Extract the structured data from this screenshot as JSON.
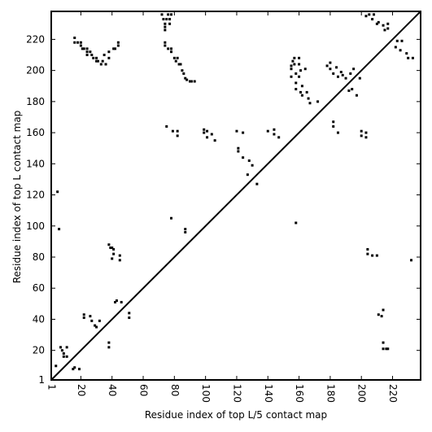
{
  "chart_data": {
    "type": "scatter",
    "xlabel": "Residue index of top L/5 contact map",
    "ylabel": "Residue index of top L contact map",
    "xlim": [
      1,
      238
    ],
    "ylim": [
      1,
      238
    ],
    "x_ticks": [
      1,
      20,
      40,
      60,
      80,
      100,
      120,
      140,
      160,
      180,
      200,
      220
    ],
    "y_ticks": [
      1,
      20,
      40,
      60,
      80,
      100,
      120,
      140,
      160,
      180,
      200,
      220
    ],
    "diagonal": true,
    "colors": {
      "points": "#000000",
      "axes": "#000000",
      "background": "#ffffff"
    },
    "series": [
      {
        "region": "above-diagonal",
        "points": [
          [
            16,
            221
          ],
          [
            16,
            218
          ],
          [
            18,
            218
          ],
          [
            20,
            216
          ],
          [
            20,
            218
          ],
          [
            21,
            214
          ],
          [
            22,
            214
          ],
          [
            24,
            214
          ],
          [
            24,
            212
          ],
          [
            24,
            210
          ],
          [
            26,
            212
          ],
          [
            27,
            210
          ],
          [
            28,
            208
          ],
          [
            30,
            208
          ],
          [
            30,
            206
          ],
          [
            31,
            206
          ],
          [
            33,
            204
          ],
          [
            34,
            206
          ],
          [
            35,
            210
          ],
          [
            36,
            204
          ],
          [
            38,
            212
          ],
          [
            38,
            208
          ],
          [
            41,
            214
          ],
          [
            42,
            214
          ],
          [
            44,
            216
          ],
          [
            44,
            218
          ],
          [
            72,
            236
          ],
          [
            73,
            233
          ],
          [
            74,
            230
          ],
          [
            74,
            228
          ],
          [
            74,
            226
          ],
          [
            75,
            233
          ],
          [
            76,
            236
          ],
          [
            77,
            230
          ],
          [
            77,
            233
          ],
          [
            78,
            236
          ],
          [
            74,
            216
          ],
          [
            74,
            218
          ],
          [
            76,
            214
          ],
          [
            78,
            214
          ],
          [
            78,
            212
          ],
          [
            80,
            208
          ],
          [
            81,
            206
          ],
          [
            82,
            208
          ],
          [
            83,
            204
          ],
          [
            84,
            204
          ],
          [
            85,
            200
          ],
          [
            86,
            198
          ],
          [
            87,
            195
          ],
          [
            88,
            194
          ],
          [
            90,
            193
          ],
          [
            91,
            193
          ],
          [
            93,
            193
          ],
          [
            75,
            164
          ],
          [
            79,
            161
          ],
          [
            82,
            161
          ],
          [
            82,
            158
          ],
          [
            99,
            160
          ],
          [
            99,
            162
          ],
          [
            101,
            157
          ],
          [
            101,
            161
          ],
          [
            104,
            159
          ],
          [
            106,
            155
          ],
          [
            120,
            161
          ],
          [
            121,
            150
          ],
          [
            121,
            148
          ],
          [
            124,
            160
          ],
          [
            124,
            144
          ],
          [
            127,
            133
          ],
          [
            128,
            142
          ],
          [
            130,
            139
          ],
          [
            133,
            127
          ],
          [
            140,
            161
          ],
          [
            144,
            162
          ],
          [
            144,
            159
          ],
          [
            147,
            157
          ],
          [
            155,
            203
          ],
          [
            155,
            201
          ],
          [
            155,
            196
          ],
          [
            156,
            206
          ],
          [
            157,
            208
          ],
          [
            157,
            204
          ],
          [
            158,
            198
          ],
          [
            158,
            192
          ],
          [
            158,
            188
          ],
          [
            160,
            208
          ],
          [
            160,
            204
          ],
          [
            160,
            196
          ],
          [
            161,
            200
          ],
          [
            161,
            186
          ],
          [
            162,
            190
          ],
          [
            162,
            184
          ],
          [
            164,
            201
          ],
          [
            165,
            186
          ],
          [
            166,
            182
          ],
          [
            167,
            179
          ],
          [
            172,
            180
          ],
          [
            178,
            203
          ],
          [
            180,
            201
          ],
          [
            180,
            205
          ],
          [
            182,
            198
          ],
          [
            182,
            167
          ],
          [
            182,
            164
          ],
          [
            184,
            202
          ],
          [
            185,
            196
          ],
          [
            185,
            160
          ],
          [
            187,
            199
          ],
          [
            188,
            197
          ],
          [
            190,
            195
          ],
          [
            192,
            187
          ],
          [
            193,
            198
          ],
          [
            194,
            188
          ],
          [
            195,
            201
          ],
          [
            197,
            184
          ],
          [
            199,
            195
          ],
          [
            200,
            161
          ],
          [
            200,
            158
          ],
          [
            203,
            160
          ],
          [
            203,
            157
          ],
          [
            203,
            235
          ],
          [
            205,
            236
          ],
          [
            207,
            233
          ],
          [
            208,
            236
          ],
          [
            210,
            230
          ],
          [
            211,
            231
          ],
          [
            214,
            229
          ],
          [
            215,
            226
          ],
          [
            217,
            230
          ],
          [
            217,
            227
          ],
          [
            222,
            215
          ],
          [
            223,
            219
          ],
          [
            225,
            213
          ],
          [
            226,
            219
          ],
          [
            229,
            211
          ],
          [
            230,
            208
          ],
          [
            233,
            208
          ]
        ]
      },
      {
        "region": "below-diagonal",
        "points": [
          [
            4,
            10
          ],
          [
            5,
            122
          ],
          [
            6,
            98
          ],
          [
            7,
            22
          ],
          [
            8,
            20
          ],
          [
            9,
            18
          ],
          [
            9,
            16
          ],
          [
            11,
            22
          ],
          [
            11,
            16
          ],
          [
            15,
            8
          ],
          [
            16,
            9
          ],
          [
            19,
            8
          ],
          [
            22,
            43
          ],
          [
            22,
            41
          ],
          [
            26,
            42
          ],
          [
            27,
            39
          ],
          [
            29,
            36
          ],
          [
            30,
            35
          ],
          [
            32,
            39
          ],
          [
            38,
            88
          ],
          [
            39,
            86
          ],
          [
            40,
            86
          ],
          [
            41,
            85
          ],
          [
            41,
            82
          ],
          [
            40,
            79
          ],
          [
            42,
            51
          ],
          [
            43,
            52
          ],
          [
            45,
            78
          ],
          [
            45,
            81
          ],
          [
            46,
            51
          ],
          [
            51,
            44
          ],
          [
            51,
            41
          ],
          [
            38,
            25
          ],
          [
            38,
            22
          ],
          [
            78,
            105
          ],
          [
            87,
            98
          ],
          [
            87,
            96
          ],
          [
            158,
            102
          ],
          [
            204,
            85
          ],
          [
            204,
            82
          ],
          [
            207,
            81
          ],
          [
            210,
            81
          ],
          [
            211,
            43
          ],
          [
            213,
            42
          ],
          [
            214,
            46
          ],
          [
            214,
            25
          ],
          [
            214,
            21
          ],
          [
            216,
            21
          ],
          [
            217,
            21
          ],
          [
            232,
            78
          ]
        ]
      }
    ]
  }
}
